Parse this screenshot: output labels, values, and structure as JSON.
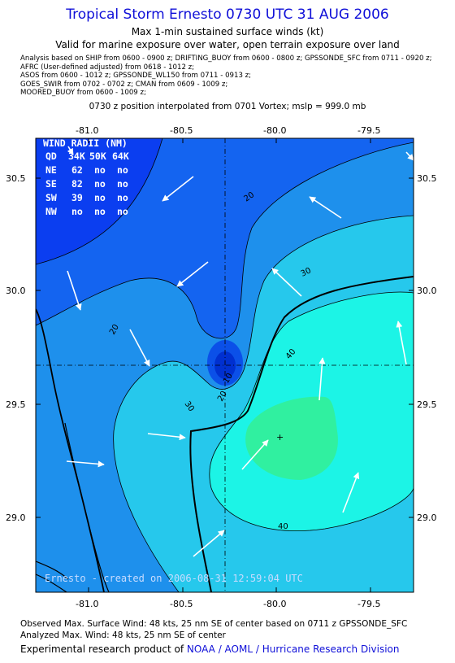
{
  "header": {
    "title": "Tropical Storm Ernesto 0730 UTC 31 AUG 2006",
    "subtitle1": "Max 1-min sustained surface winds (kt)",
    "subtitle2": "Valid for marine exposure over water, open terrain exposure over land"
  },
  "observations": [
    "Analysis based on  SHIP from 0600 - 0900 z;  DRIFTING_BUOY from 0600 - 0800 z;  GPSSONDE_SFC from 0711 - 0920 z;",
    "AFRC (User-defined adjusted) from 0618 - 1012 z;",
    "ASOS from 0600 - 1012 z;  GPSSONDE_WL150 from 0711 - 0913 z;",
    "GOES_SWIR from 0702 - 0702 z;  CMAN from 0609 - 1009 z;",
    "MOORED_BUOY from 0600 - 1009 z;"
  ],
  "position_note": "0730 z position interpolated from 0701 Vortex; mslp = 999.0 mb",
  "axes": {
    "lon_ticks": [
      "-81.0",
      "-80.5",
      "-80.0",
      "-79.5"
    ],
    "lat_ticks": [
      "30.5",
      "30.0",
      "29.5",
      "29.0"
    ]
  },
  "wind_radii": {
    "title": "WIND RADII (NM)",
    "header": [
      "QD",
      "34K",
      "50K",
      "64K"
    ],
    "rows": [
      [
        "NE",
        "62",
        "no",
        "no"
      ],
      [
        "SE",
        "82",
        "no",
        "no"
      ],
      [
        "SW",
        "39",
        "no",
        "no"
      ],
      [
        "NW",
        "no",
        "no",
        "no"
      ]
    ]
  },
  "contour_labels": [
    "20",
    "30",
    "40",
    "20",
    "30",
    "40",
    "10",
    "20"
  ],
  "watermark": "Ernesto - created on 2006-08-31 12:59:04 UTC",
  "footer": {
    "observed": "Observed Max. Surface Wind: 48 kts, 25 nm SE of center based on 0711 z GPSSONDE_SFC",
    "analyzed": "Analyzed Max. Wind: 48 kts, 25 nm SE of center",
    "credit_prefix": "Experimental research product of ",
    "credit_link": "NOAA / AOML / Hurricane Research Division"
  },
  "colors": {
    "band_0_10": "#0b3ef0",
    "band_10_20": "#1464f0",
    "band_20_30": "#1e90ec",
    "band_30_40": "#26c8ec",
    "band_40_plus": "#1cf4e6",
    "core": "#30f0a0",
    "center_low": "#0030d0",
    "title": "#1010d8"
  }
}
